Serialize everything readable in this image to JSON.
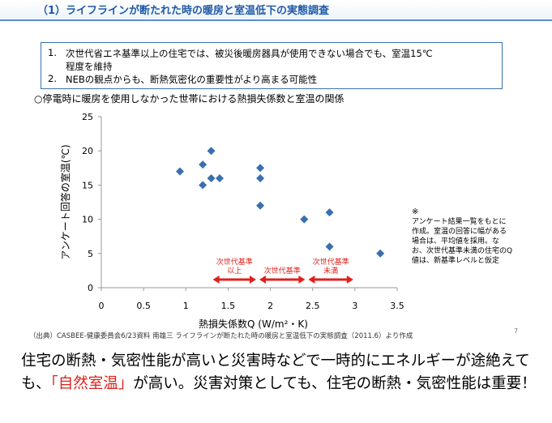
{
  "slide": {
    "title": "（1）ライフラインが断たれた時の暖房と室温低下の実態調査",
    "summary": [
      {
        "num": "1.",
        "lines": [
          "次世代省エネ基準以上の住宅では、被災後暖房器具が使用できない場合でも、室温15℃",
          "程度を維持"
        ]
      },
      {
        "num": "2.",
        "lines": [
          "NEBの観点からも、断熱気密化の重要性がより高まる可能性"
        ]
      }
    ],
    "subtitle": "○停電時に暖房を使用しなかった世帯における熱損失係数と室温の関係",
    "note": {
      "mark": "※",
      "text": "アンケート結果一覧をもとに作成。室温の回答に幅がある場合は、平均値を採用。なお、次世代基準未満の住宅のQ値は、新基準レベルと仮定"
    },
    "source": "（出典）CASBEE-健康委員会6/23資料 南雄三 ライフラインが断たれた時の暖房と室温低下の実態調査（2011.6）より作成",
    "page_number": "7"
  },
  "bottom": {
    "text_before": "住宅の断熱・気密性能が高いと災害時などで一時的にエネルギーが途絶えても、",
    "highlight": "「自然室温」",
    "text_after": "が高い。災害対策としても、住宅の断熱・気密性能は重要！"
  },
  "colors": {
    "title": "#1f5aa8",
    "points": "#3a6fb0",
    "arrows": "#e0201b",
    "highlight": "#e0201b"
  },
  "chart_data": {
    "type": "scatter",
    "title": "",
    "xlabel": "熱損失係数Q (W/m²・K)",
    "ylabel": "アンケート回答の室温(℃)",
    "xlim": [
      0,
      3.5
    ],
    "ylim": [
      0,
      25
    ],
    "xticks": [
      "0",
      "0.5",
      "1",
      "1.5",
      "2",
      "2.5",
      "3",
      "3.5"
    ],
    "yticks": [
      "0",
      "5",
      "10",
      "15",
      "20",
      "25"
    ],
    "grid": false,
    "points": [
      {
        "x": 0.93,
        "y": 17
      },
      {
        "x": 1.2,
        "y": 15
      },
      {
        "x": 1.2,
        "y": 18
      },
      {
        "x": 1.3,
        "y": 20
      },
      {
        "x": 1.3,
        "y": 16
      },
      {
        "x": 1.4,
        "y": 16
      },
      {
        "x": 1.88,
        "y": 17.5
      },
      {
        "x": 1.88,
        "y": 16
      },
      {
        "x": 1.88,
        "y": 12
      },
      {
        "x": 2.4,
        "y": 10
      },
      {
        "x": 2.7,
        "y": 11
      },
      {
        "x": 2.7,
        "y": 6
      },
      {
        "x": 3.3,
        "y": 5
      }
    ],
    "ranges": [
      {
        "label_lines": [
          "次世代基準",
          "以上"
        ],
        "x_from": 1.3,
        "x_to": 1.85
      },
      {
        "label_lines": [
          "次世代基準"
        ],
        "x_from": 1.85,
        "x_to": 2.43
      },
      {
        "label_lines": [
          "次世代基準",
          "未満"
        ],
        "x_from": 2.43,
        "x_to": 3.0
      }
    ]
  }
}
